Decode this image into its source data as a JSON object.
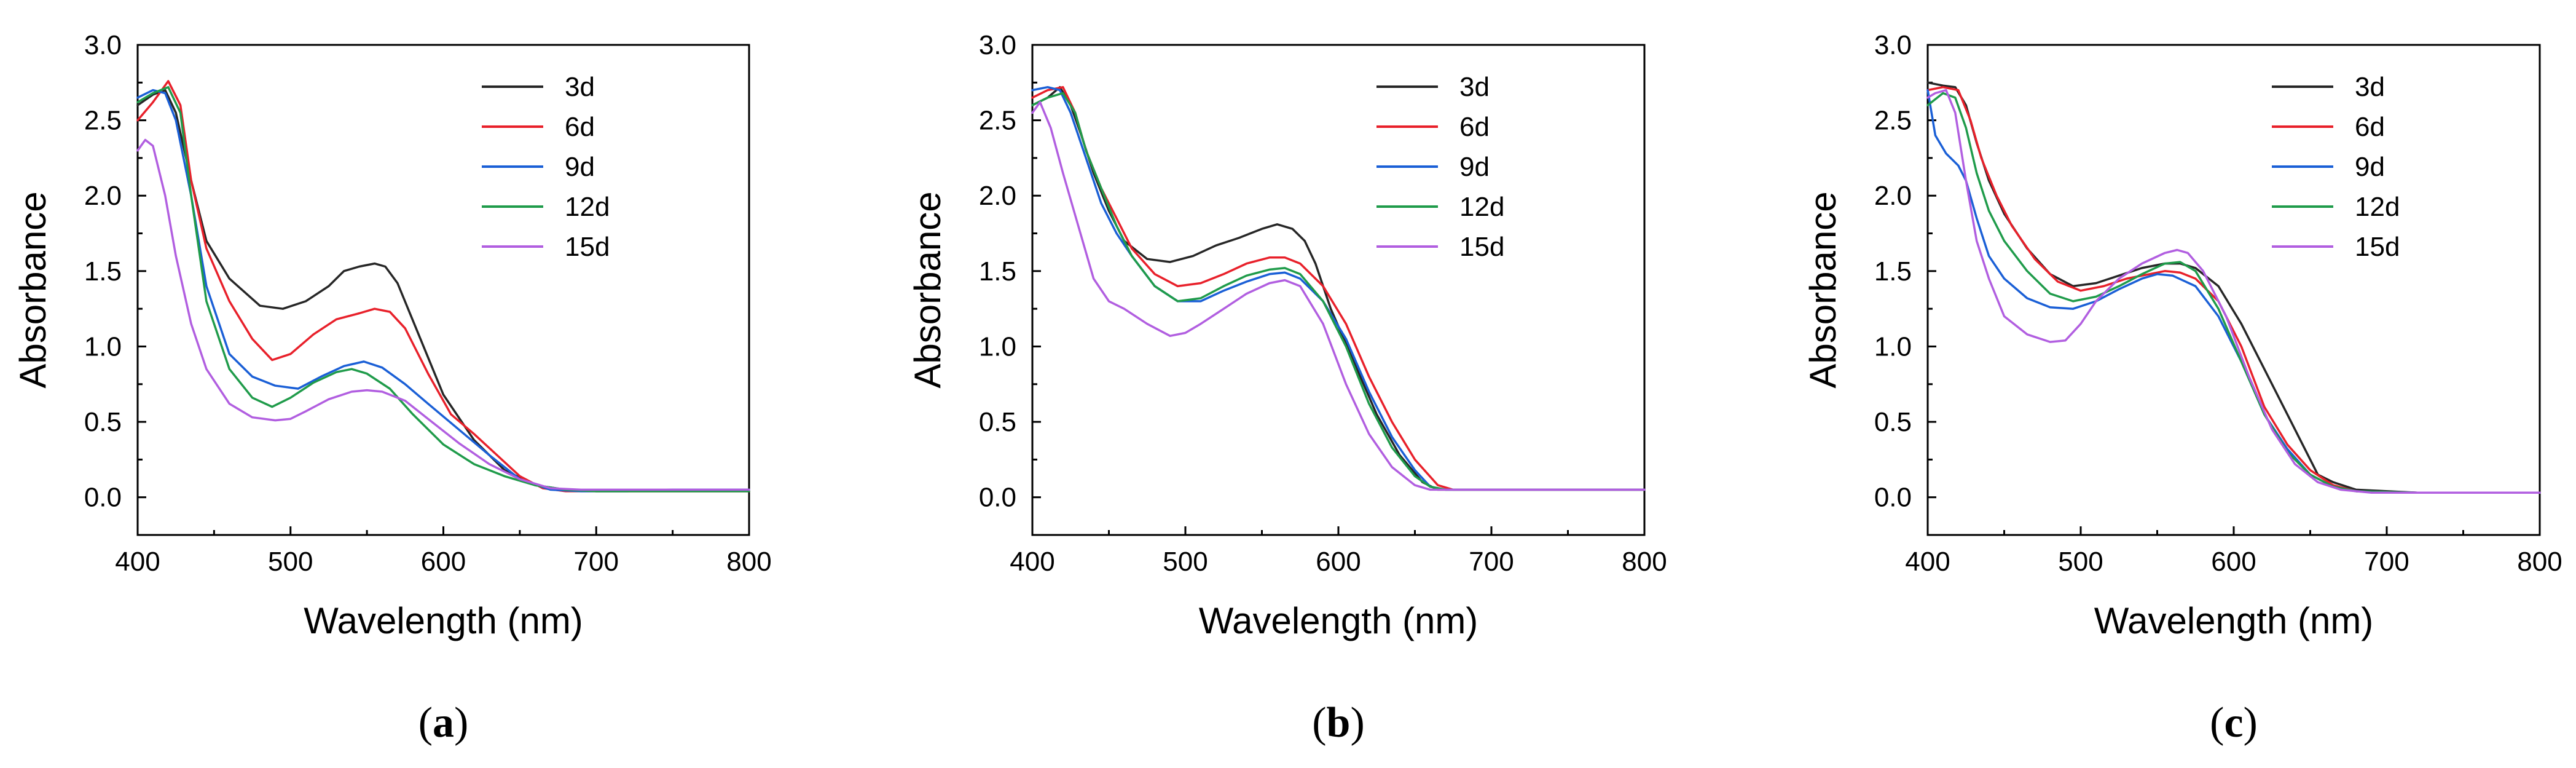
{
  "colors": {
    "3d": "#262626",
    "6d": "#e8202a",
    "9d": "#1a5fd6",
    "12d": "#1f9b4a",
    "15d": "#b15ee0",
    "axis": "#000000"
  },
  "chart_data": [
    {
      "type": "line",
      "panel_label": "a",
      "xlabel": "Wavelength (nm)",
      "ylabel": "Absorbance",
      "xlim": [
        400,
        800
      ],
      "ylim": [
        -0.25,
        3.0
      ],
      "xticks": [
        400,
        500,
        600,
        700,
        800
      ],
      "yticks": [
        0.0,
        0.5,
        1.0,
        1.5,
        2.0,
        2.5,
        3.0
      ],
      "xtick_labels": [
        "400",
        "500",
        "600",
        "700",
        "800"
      ],
      "ytick_labels": [
        "0.0",
        "0.5",
        "1.0",
        "1.5",
        "2.0",
        "2.5",
        "3.0"
      ],
      "grid": false,
      "legend_position": "top-right",
      "series": [
        {
          "name": "3d",
          "x": [
            400,
            410,
            418,
            425,
            435,
            445,
            460,
            480,
            495,
            510,
            525,
            535,
            545,
            555,
            562,
            570,
            585,
            600,
            620,
            640,
            660,
            680,
            700,
            720,
            750,
            780,
            800
          ],
          "y": [
            2.6,
            2.67,
            2.7,
            2.55,
            2.1,
            1.7,
            1.45,
            1.27,
            1.25,
            1.3,
            1.4,
            1.5,
            1.53,
            1.55,
            1.53,
            1.42,
            1.05,
            0.68,
            0.38,
            0.18,
            0.08,
            0.05,
            0.04,
            0.04,
            0.04,
            0.04,
            0.04
          ]
        },
        {
          "name": "6d",
          "x": [
            400,
            410,
            420,
            428,
            435,
            445,
            460,
            475,
            488,
            500,
            515,
            530,
            545,
            555,
            565,
            575,
            590,
            605,
            620,
            635,
            650,
            665,
            680,
            700,
            720,
            750,
            780,
            800
          ],
          "y": [
            2.5,
            2.62,
            2.76,
            2.6,
            2.1,
            1.65,
            1.3,
            1.05,
            0.91,
            0.95,
            1.08,
            1.18,
            1.22,
            1.25,
            1.23,
            1.12,
            0.82,
            0.55,
            0.42,
            0.28,
            0.14,
            0.06,
            0.04,
            0.04,
            0.04,
            0.04,
            0.04,
            0.04
          ]
        },
        {
          "name": "9d",
          "x": [
            400,
            410,
            418,
            425,
            435,
            445,
            460,
            475,
            490,
            505,
            520,
            535,
            548,
            560,
            575,
            590,
            610,
            630,
            650,
            670,
            690,
            720,
            750,
            780,
            800
          ],
          "y": [
            2.65,
            2.7,
            2.68,
            2.5,
            2.0,
            1.4,
            0.95,
            0.8,
            0.74,
            0.72,
            0.8,
            0.87,
            0.9,
            0.86,
            0.75,
            0.62,
            0.45,
            0.28,
            0.12,
            0.05,
            0.04,
            0.04,
            0.05,
            0.05,
            0.05
          ]
        },
        {
          "name": "12d",
          "x": [
            400,
            410,
            420,
            428,
            435,
            445,
            460,
            475,
            488,
            500,
            515,
            530,
            540,
            550,
            565,
            580,
            600,
            620,
            640,
            660,
            680,
            700,
            720,
            750,
            780,
            800
          ],
          "y": [
            2.62,
            2.68,
            2.72,
            2.55,
            2.0,
            1.3,
            0.85,
            0.66,
            0.6,
            0.66,
            0.76,
            0.83,
            0.85,
            0.82,
            0.72,
            0.55,
            0.35,
            0.22,
            0.14,
            0.08,
            0.05,
            0.04,
            0.04,
            0.04,
            0.04,
            0.04
          ]
        },
        {
          "name": "15d",
          "x": [
            400,
            405,
            410,
            418,
            425,
            435,
            445,
            460,
            475,
            490,
            500,
            510,
            525,
            540,
            550,
            560,
            575,
            590,
            610,
            630,
            650,
            670,
            690,
            720,
            750,
            780,
            800
          ],
          "y": [
            2.3,
            2.37,
            2.33,
            2.0,
            1.6,
            1.15,
            0.85,
            0.62,
            0.53,
            0.51,
            0.52,
            0.57,
            0.65,
            0.7,
            0.71,
            0.7,
            0.64,
            0.52,
            0.36,
            0.22,
            0.12,
            0.06,
            0.05,
            0.05,
            0.05,
            0.05,
            0.05
          ]
        }
      ]
    },
    {
      "type": "line",
      "panel_label": "b",
      "xlabel": "Wavelength (nm)",
      "ylabel": "Absorbance",
      "xlim": [
        400,
        800
      ],
      "ylim": [
        -0.25,
        3.0
      ],
      "xticks": [
        400,
        500,
        600,
        700,
        800
      ],
      "yticks": [
        0.0,
        0.5,
        1.0,
        1.5,
        2.0,
        2.5,
        3.0
      ],
      "xtick_labels": [
        "400",
        "500",
        "600",
        "700",
        "800"
      ],
      "ytick_labels": [
        "0.0",
        "0.5",
        "1.0",
        "1.5",
        "2.0",
        "2.5",
        "3.0"
      ],
      "grid": false,
      "legend_position": "top-right",
      "series": [
        {
          "name": "3d",
          "x": [
            400,
            410,
            418,
            425,
            432,
            440,
            450,
            460,
            475,
            490,
            505,
            520,
            535,
            550,
            560,
            570,
            578,
            585,
            595,
            610,
            625,
            640,
            655,
            665,
            680,
            720,
            760,
            800
          ],
          "y": [
            2.6,
            2.65,
            2.72,
            2.6,
            2.4,
            2.15,
            1.9,
            1.7,
            1.58,
            1.56,
            1.6,
            1.67,
            1.72,
            1.78,
            1.81,
            1.78,
            1.7,
            1.55,
            1.25,
            0.9,
            0.55,
            0.28,
            0.1,
            0.05,
            0.05,
            0.05,
            0.05,
            0.05
          ]
        },
        {
          "name": "6d",
          "x": [
            400,
            410,
            420,
            428,
            435,
            445,
            455,
            465,
            480,
            495,
            510,
            525,
            540,
            555,
            565,
            575,
            590,
            605,
            620,
            635,
            650,
            665,
            675,
            690,
            720,
            760,
            800
          ],
          "y": [
            2.65,
            2.7,
            2.72,
            2.55,
            2.3,
            2.05,
            1.85,
            1.65,
            1.48,
            1.4,
            1.42,
            1.48,
            1.55,
            1.59,
            1.59,
            1.55,
            1.4,
            1.15,
            0.8,
            0.5,
            0.25,
            0.08,
            0.05,
            0.05,
            0.05,
            0.05,
            0.05
          ]
        },
        {
          "name": "9d",
          "x": [
            400,
            410,
            418,
            425,
            435,
            445,
            455,
            465,
            480,
            495,
            510,
            525,
            540,
            555,
            565,
            575,
            590,
            605,
            620,
            635,
            650,
            660,
            670,
            690,
            720,
            760,
            800
          ],
          "y": [
            2.7,
            2.72,
            2.7,
            2.55,
            2.25,
            1.95,
            1.75,
            1.6,
            1.4,
            1.3,
            1.3,
            1.37,
            1.43,
            1.48,
            1.49,
            1.45,
            1.3,
            1.05,
            0.7,
            0.4,
            0.18,
            0.07,
            0.05,
            0.05,
            0.05,
            0.05,
            0.05
          ]
        },
        {
          "name": "12d",
          "x": [
            400,
            410,
            420,
            428,
            435,
            445,
            455,
            465,
            480,
            495,
            510,
            525,
            540,
            555,
            565,
            575,
            590,
            605,
            620,
            635,
            650,
            660,
            670,
            690,
            720,
            760,
            800
          ],
          "y": [
            2.6,
            2.65,
            2.68,
            2.55,
            2.3,
            2.05,
            1.8,
            1.6,
            1.4,
            1.3,
            1.32,
            1.4,
            1.47,
            1.51,
            1.52,
            1.48,
            1.3,
            1.0,
            0.62,
            0.33,
            0.14,
            0.07,
            0.05,
            0.05,
            0.05,
            0.05,
            0.05
          ]
        },
        {
          "name": "15d",
          "x": [
            400,
            405,
            412,
            420,
            430,
            440,
            450,
            460,
            475,
            490,
            500,
            510,
            525,
            540,
            555,
            565,
            575,
            590,
            605,
            620,
            635,
            650,
            660,
            680,
            720,
            760,
            800
          ],
          "y": [
            2.55,
            2.62,
            2.45,
            2.15,
            1.8,
            1.45,
            1.3,
            1.25,
            1.15,
            1.07,
            1.09,
            1.15,
            1.25,
            1.35,
            1.42,
            1.44,
            1.4,
            1.15,
            0.75,
            0.42,
            0.2,
            0.08,
            0.05,
            0.05,
            0.05,
            0.05,
            0.05
          ]
        }
      ]
    },
    {
      "type": "line",
      "panel_label": "c",
      "xlabel": "Wavelength (nm)",
      "ylabel": "Absorbance",
      "xlim": [
        400,
        800
      ],
      "ylim": [
        -0.25,
        3.0
      ],
      "xticks": [
        400,
        500,
        600,
        700,
        800
      ],
      "yticks": [
        0.0,
        0.5,
        1.0,
        1.5,
        2.0,
        2.5,
        3.0
      ],
      "xtick_labels": [
        "400",
        "500",
        "600",
        "700",
        "800"
      ],
      "ytick_labels": [
        "0.0",
        "0.5",
        "1.0",
        "1.5",
        "2.0",
        "2.5",
        "3.0"
      ],
      "grid": false,
      "legend_position": "top-right",
      "series": [
        {
          "name": "3d",
          "x": [
            400,
            410,
            418,
            425,
            432,
            440,
            450,
            465,
            480,
            495,
            510,
            525,
            540,
            555,
            565,
            575,
            590,
            605,
            620,
            635,
            645,
            655,
            665,
            680,
            720,
            760,
            800
          ],
          "y": [
            2.75,
            2.73,
            2.72,
            2.6,
            2.35,
            2.1,
            1.88,
            1.65,
            1.48,
            1.4,
            1.42,
            1.47,
            1.52,
            1.55,
            1.55,
            1.52,
            1.4,
            1.15,
            0.85,
            0.55,
            0.35,
            0.15,
            0.1,
            0.05,
            0.03,
            0.03,
            0.03
          ]
        },
        {
          "name": "6d",
          "x": [
            400,
            410,
            420,
            428,
            435,
            445,
            455,
            470,
            485,
            500,
            515,
            530,
            545,
            555,
            565,
            575,
            590,
            605,
            620,
            635,
            650,
            665,
            680,
            720,
            760,
            800
          ],
          "y": [
            2.7,
            2.72,
            2.7,
            2.5,
            2.25,
            2.0,
            1.8,
            1.58,
            1.43,
            1.37,
            1.4,
            1.45,
            1.48,
            1.5,
            1.49,
            1.45,
            1.3,
            1.0,
            0.6,
            0.35,
            0.18,
            0.08,
            0.04,
            0.03,
            0.03,
            0.03
          ]
        },
        {
          "name": "9d",
          "x": [
            400,
            405,
            412,
            420,
            425,
            432,
            440,
            450,
            465,
            480,
            495,
            510,
            525,
            540,
            550,
            560,
            575,
            590,
            605,
            620,
            635,
            650,
            665,
            680,
            720,
            760,
            800
          ],
          "y": [
            2.7,
            2.4,
            2.28,
            2.2,
            2.1,
            1.85,
            1.6,
            1.45,
            1.32,
            1.26,
            1.25,
            1.3,
            1.38,
            1.45,
            1.48,
            1.47,
            1.4,
            1.2,
            0.9,
            0.55,
            0.32,
            0.15,
            0.07,
            0.04,
            0.03,
            0.03,
            0.03
          ]
        },
        {
          "name": "12d",
          "x": [
            400,
            410,
            418,
            425,
            432,
            440,
            450,
            465,
            480,
            495,
            510,
            525,
            540,
            555,
            565,
            575,
            590,
            605,
            620,
            635,
            650,
            665,
            680,
            720,
            760,
            800
          ],
          "y": [
            2.6,
            2.68,
            2.65,
            2.45,
            2.15,
            1.9,
            1.7,
            1.5,
            1.35,
            1.3,
            1.33,
            1.4,
            1.48,
            1.55,
            1.56,
            1.5,
            1.25,
            0.9,
            0.55,
            0.3,
            0.15,
            0.07,
            0.04,
            0.03,
            0.03,
            0.03
          ]
        },
        {
          "name": "15d",
          "x": [
            400,
            405,
            412,
            418,
            425,
            432,
            440,
            450,
            465,
            480,
            490,
            500,
            510,
            525,
            540,
            555,
            563,
            570,
            580,
            595,
            610,
            625,
            640,
            655,
            670,
            690,
            720,
            760,
            800
          ],
          "y": [
            2.65,
            2.68,
            2.7,
            2.55,
            2.1,
            1.7,
            1.45,
            1.2,
            1.08,
            1.03,
            1.04,
            1.15,
            1.3,
            1.45,
            1.55,
            1.62,
            1.64,
            1.62,
            1.5,
            1.2,
            0.8,
            0.45,
            0.22,
            0.1,
            0.05,
            0.03,
            0.03,
            0.03,
            0.03
          ]
        }
      ]
    }
  ]
}
